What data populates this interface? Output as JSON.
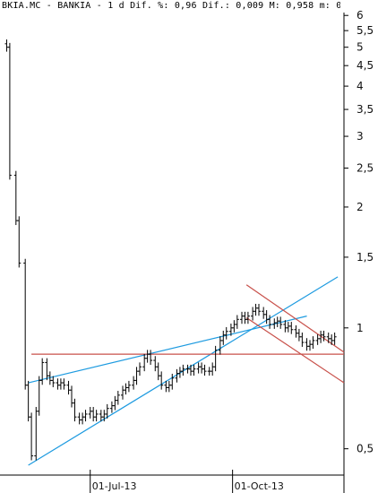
{
  "chart_data": {
    "type": "candlestick",
    "title": "BKIA.MC - BANKIA - 1 d Dif. %: 0,96 Dif.: 0,009 M: 0,958 m: 0,",
    "y_scale": "log",
    "ylim": [
      0.43,
      6.1
    ],
    "y_ticks": [
      {
        "v": 6,
        "label": "6"
      },
      {
        "v": 5.5,
        "label": "5,5"
      },
      {
        "v": 5,
        "label": "5"
      },
      {
        "v": 4.5,
        "label": "4,5"
      },
      {
        "v": 4,
        "label": "4"
      },
      {
        "v": 3.5,
        "label": "3,5"
      },
      {
        "v": 3,
        "label": "3"
      },
      {
        "v": 2.5,
        "label": "2,5"
      },
      {
        "v": 2,
        "label": "2"
      },
      {
        "v": 1.5,
        "label": "1,5"
      },
      {
        "v": 1,
        "label": "1"
      },
      {
        "v": 0.5,
        "label": "0,5"
      }
    ],
    "x_range": [
      "2013-05-06",
      "2013-12-12"
    ],
    "x_ticks": [
      {
        "date": "2013-07-01",
        "label": "01-Jul-13"
      },
      {
        "date": "2013-10-01",
        "label": "01-Oct-13"
      }
    ],
    "points": [
      [
        "2013-05-08",
        5.0
      ],
      [
        "2013-05-10",
        2.4
      ],
      [
        "2013-05-14",
        1.85
      ],
      [
        "2013-05-16",
        1.45
      ],
      [
        "2013-05-20",
        0.72
      ],
      [
        "2013-05-22",
        0.6
      ],
      [
        "2013-05-24",
        0.48
      ],
      [
        "2013-05-27",
        0.62
      ],
      [
        "2013-05-29",
        0.74
      ],
      [
        "2013-05-31",
        0.82
      ],
      [
        "2013-06-03",
        0.76
      ],
      [
        "2013-06-05",
        0.74
      ],
      [
        "2013-06-07",
        0.73
      ],
      [
        "2013-06-10",
        0.72
      ],
      [
        "2013-06-12",
        0.73
      ],
      [
        "2013-06-14",
        0.72
      ],
      [
        "2013-06-17",
        0.7
      ],
      [
        "2013-06-19",
        0.65
      ],
      [
        "2013-06-21",
        0.6
      ],
      [
        "2013-06-24",
        0.59
      ],
      [
        "2013-06-26",
        0.6
      ],
      [
        "2013-06-28",
        0.61
      ],
      [
        "2013-07-01",
        0.62
      ],
      [
        "2013-07-03",
        0.6
      ],
      [
        "2013-07-05",
        0.61
      ],
      [
        "2013-07-08",
        0.6
      ],
      [
        "2013-07-10",
        0.61
      ],
      [
        "2013-07-12",
        0.63
      ],
      [
        "2013-07-15",
        0.64
      ],
      [
        "2013-07-17",
        0.66
      ],
      [
        "2013-07-19",
        0.68
      ],
      [
        "2013-07-22",
        0.7
      ],
      [
        "2013-07-24",
        0.71
      ],
      [
        "2013-07-26",
        0.72
      ],
      [
        "2013-07-29",
        0.74
      ],
      [
        "2013-07-31",
        0.78
      ],
      [
        "2013-08-02",
        0.8
      ],
      [
        "2013-08-05",
        0.84
      ],
      [
        "2013-08-07",
        0.86
      ],
      [
        "2013-08-09",
        0.83
      ],
      [
        "2013-08-12",
        0.8
      ],
      [
        "2013-08-14",
        0.76
      ],
      [
        "2013-08-16",
        0.72
      ],
      [
        "2013-08-19",
        0.71
      ],
      [
        "2013-08-21",
        0.72
      ],
      [
        "2013-08-23",
        0.75
      ],
      [
        "2013-08-26",
        0.77
      ],
      [
        "2013-08-28",
        0.78
      ],
      [
        "2013-08-30",
        0.79
      ],
      [
        "2013-09-02",
        0.79
      ],
      [
        "2013-09-04",
        0.78
      ],
      [
        "2013-09-06",
        0.79
      ],
      [
        "2013-09-09",
        0.8
      ],
      [
        "2013-09-11",
        0.79
      ],
      [
        "2013-09-13",
        0.78
      ],
      [
        "2013-09-16",
        0.78
      ],
      [
        "2013-09-18",
        0.8
      ],
      [
        "2013-09-20",
        0.88
      ],
      [
        "2013-09-23",
        0.93
      ],
      [
        "2013-09-25",
        0.96
      ],
      [
        "2013-09-27",
        0.98
      ],
      [
        "2013-09-30",
        1.0
      ],
      [
        "2013-10-02",
        1.02
      ],
      [
        "2013-10-04",
        1.05
      ],
      [
        "2013-10-07",
        1.07
      ],
      [
        "2013-10-09",
        1.05
      ],
      [
        "2013-10-11",
        1.07
      ],
      [
        "2013-10-14",
        1.1
      ],
      [
        "2013-10-16",
        1.12
      ],
      [
        "2013-10-18",
        1.1
      ],
      [
        "2013-10-21",
        1.08
      ],
      [
        "2013-10-23",
        1.05
      ],
      [
        "2013-10-25",
        1.02
      ],
      [
        "2013-10-28",
        1.03
      ],
      [
        "2013-10-30",
        1.04
      ],
      [
        "2013-11-01",
        1.02
      ],
      [
        "2013-11-04",
        1.0
      ],
      [
        "2013-11-06",
        1.01
      ],
      [
        "2013-11-08",
        0.99
      ],
      [
        "2013-11-11",
        0.97
      ],
      [
        "2013-11-13",
        0.95
      ],
      [
        "2013-11-15",
        0.92
      ],
      [
        "2013-11-18",
        0.9
      ],
      [
        "2013-11-20",
        0.91
      ],
      [
        "2013-11-22",
        0.93
      ],
      [
        "2013-11-25",
        0.94
      ],
      [
        "2013-11-27",
        0.96
      ],
      [
        "2013-11-29",
        0.95
      ],
      [
        "2013-12-02",
        0.94
      ],
      [
        "2013-12-04",
        0.93
      ],
      [
        "2013-12-06",
        0.95
      ]
    ],
    "trendlines": [
      {
        "color": "#1e9be0",
        "from": [
          "2013-05-22",
          0.455
        ],
        "to": [
          "2013-12-08",
          1.34
        ]
      },
      {
        "color": "#1e9be0",
        "from": [
          "2013-05-22",
          0.73
        ],
        "to": [
          "2013-11-18",
          1.07
        ]
      },
      {
        "color": "#c8504a",
        "from": [
          "2013-05-24",
          0.86
        ],
        "to": [
          "2013-12-12",
          0.86
        ]
      },
      {
        "color": "#c8504a",
        "from": [
          "2013-10-10",
          1.28
        ],
        "to": [
          "2013-12-12",
          0.87
        ]
      },
      {
        "color": "#c8504a",
        "from": [
          "2013-10-10",
          1.06
        ],
        "to": [
          "2013-12-12",
          0.73
        ]
      }
    ],
    "grid": false,
    "legend": "none"
  }
}
